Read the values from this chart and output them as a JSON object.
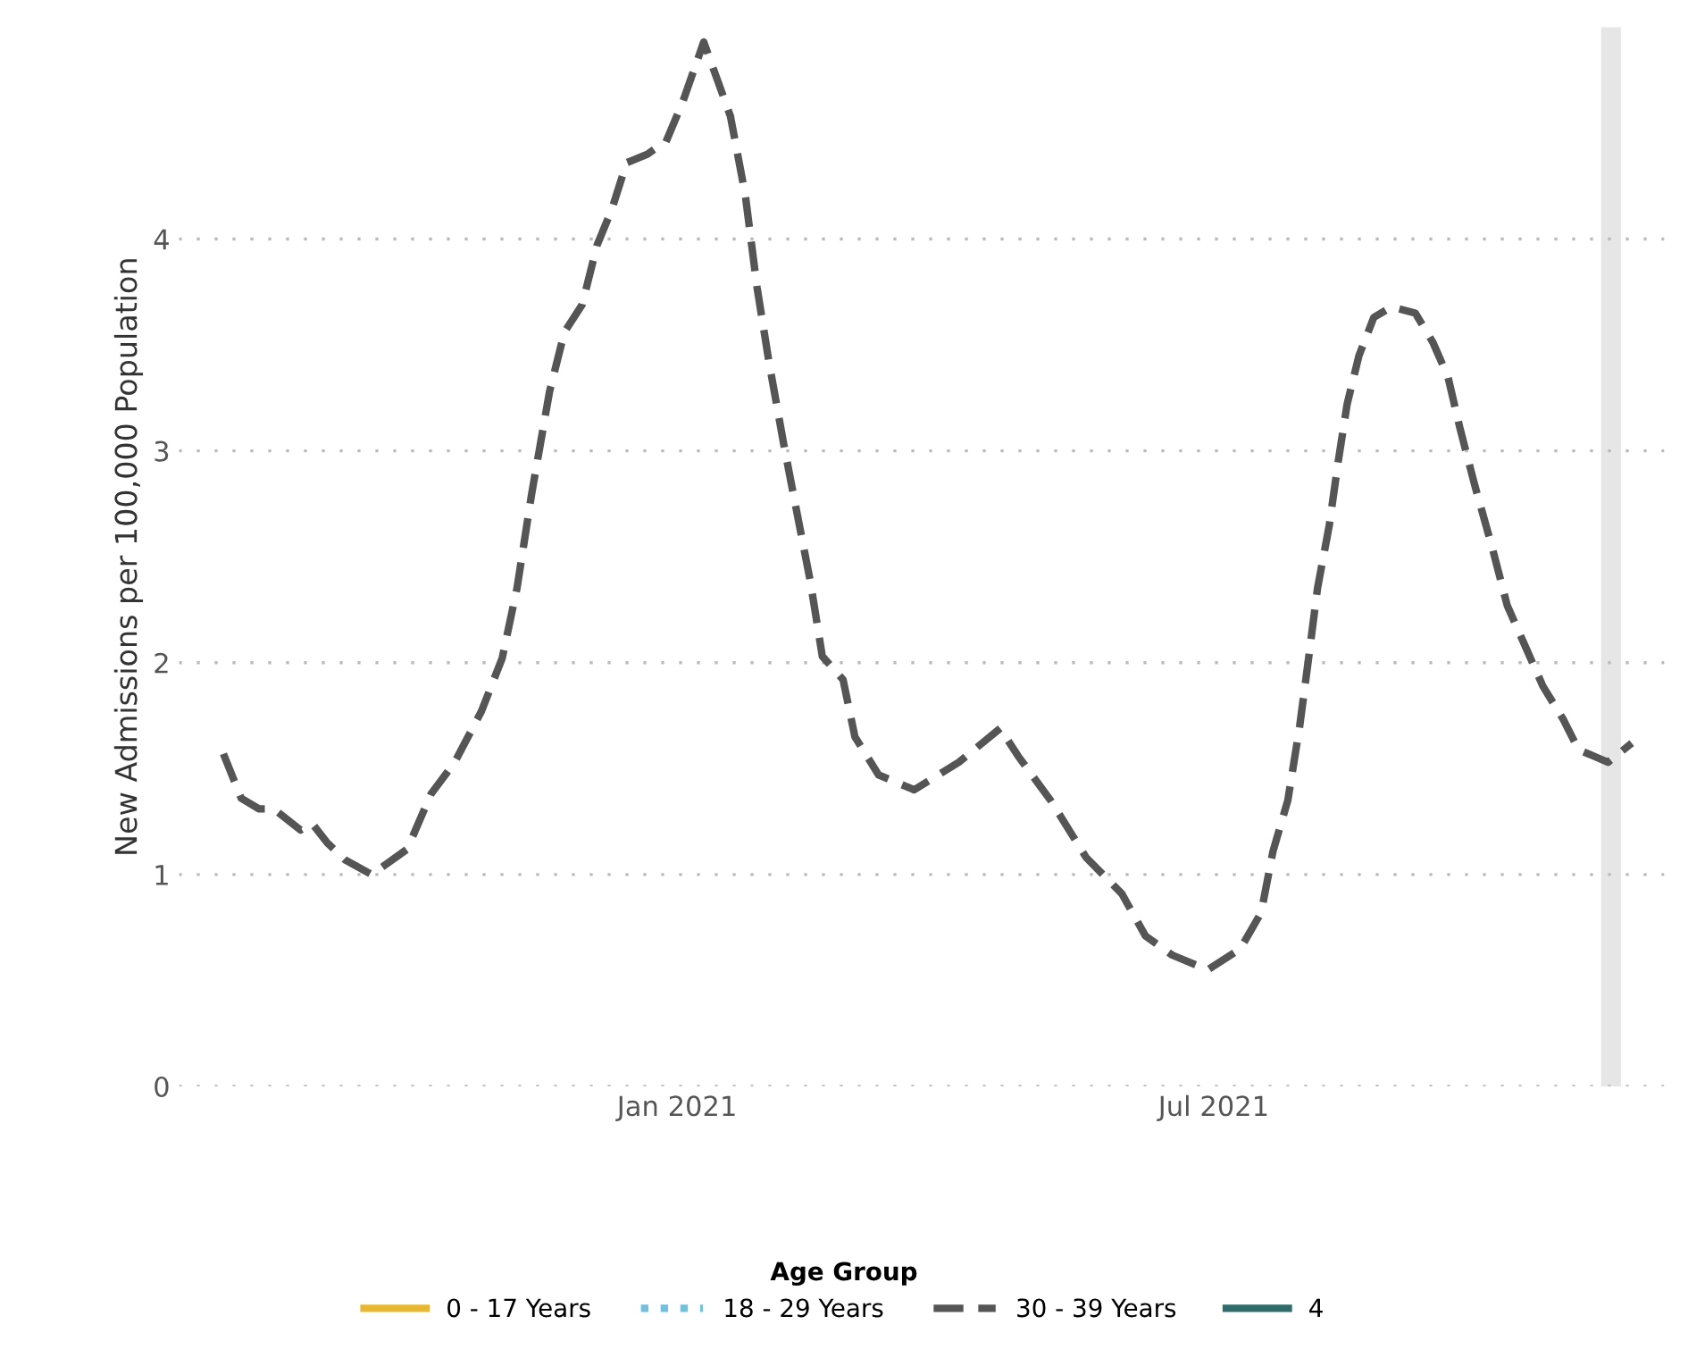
{
  "chart_data": {
    "type": "line",
    "ylabel": "New Admissions per 100,000 Population",
    "legend_title": "Age Group",
    "legend": "bottom",
    "grid": "y",
    "xlim": [
      "2020-07-17",
      "2021-11-30"
    ],
    "xticks": [
      {
        "value": "2021-01-01",
        "label": "Jan 2021"
      },
      {
        "value": "2021-07-01",
        "label": "Jul 2021"
      }
    ],
    "ylim": [
      0,
      5
    ],
    "yticks": [
      0,
      1,
      2,
      3,
      4
    ],
    "ref_lines": [
      {
        "axis": "x",
        "value": "2021-11-12",
        "label": null,
        "color": "#e6e6e6"
      }
    ],
    "series": [
      {
        "name": "0 - 17 Years",
        "color": "#e8b731",
        "line_style": "solid"
      },
      {
        "name": "18 - 29 Years",
        "color": "#6fc1dd",
        "line_style": "dotted"
      },
      {
        "name": "30 - 39 Years",
        "color": "#555555",
        "line_style": "dashed",
        "x": [
          "2020-08-01",
          "2020-08-07",
          "2020-08-13",
          "2020-08-18",
          "2020-08-27",
          "2020-08-31",
          "2020-09-05",
          "2020-09-11",
          "2020-09-20",
          "2020-10-02",
          "2020-10-10",
          "2020-10-18",
          "2020-10-27",
          "2020-11-03",
          "2020-11-08",
          "2020-11-13",
          "2020-11-19",
          "2020-11-24",
          "2020-11-30",
          "2020-12-05",
          "2020-12-10",
          "2020-12-15",
          "2020-12-22",
          "2020-12-25",
          "2020-12-28",
          "2021-01-03",
          "2021-01-10",
          "2021-01-19",
          "2021-01-24",
          "2021-01-28",
          "2021-02-01",
          "2021-02-06",
          "2021-02-10",
          "2021-02-15",
          "2021-02-19",
          "2021-02-26",
          "2021-03-02",
          "2021-03-10",
          "2021-03-22",
          "2021-04-06",
          "2021-04-20",
          "2021-04-26",
          "2021-05-07",
          "2021-05-19",
          "2021-05-31",
          "2021-06-08",
          "2021-06-17",
          "2021-06-29",
          "2021-07-10",
          "2021-07-17",
          "2021-07-21",
          "2021-07-26",
          "2021-07-30",
          "2021-08-02",
          "2021-08-05",
          "2021-08-09",
          "2021-08-12",
          "2021-08-15",
          "2021-08-19",
          "2021-08-24",
          "2021-08-30",
          "2021-09-07",
          "2021-09-13",
          "2021-09-18",
          "2021-09-22",
          "2021-09-27",
          "2021-10-03",
          "2021-10-08",
          "2021-10-14",
          "2021-10-20",
          "2021-10-27",
          "2021-11-01",
          "2021-11-11",
          "2021-11-19"
        ],
        "values": [
          1.57,
          1.36,
          1.31,
          1.31,
          1.21,
          1.24,
          1.15,
          1.07,
          1.0,
          1.12,
          1.38,
          1.53,
          1.77,
          2.02,
          2.35,
          2.8,
          3.28,
          3.56,
          3.69,
          3.97,
          4.14,
          4.36,
          4.4,
          4.43,
          4.45,
          4.65,
          4.93,
          4.58,
          4.21,
          3.77,
          3.42,
          3.03,
          2.74,
          2.38,
          2.03,
          1.92,
          1.65,
          1.47,
          1.4,
          1.53,
          1.69,
          1.56,
          1.35,
          1.08,
          0.91,
          0.71,
          0.62,
          0.55,
          0.65,
          0.82,
          1.11,
          1.35,
          1.7,
          2.02,
          2.35,
          2.65,
          2.95,
          3.22,
          3.45,
          3.63,
          3.68,
          3.65,
          3.51,
          3.35,
          3.11,
          2.84,
          2.54,
          2.27,
          2.08,
          1.89,
          1.73,
          1.59,
          1.53,
          1.62
        ]
      },
      {
        "name": "4",
        "color": "#2e6b69",
        "line_style": "solid"
      }
    ]
  }
}
